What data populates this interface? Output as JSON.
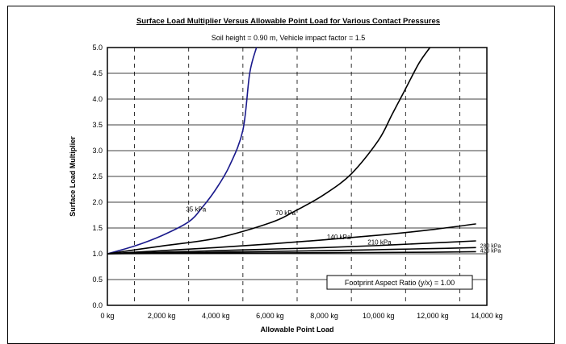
{
  "chart_data": {
    "type": "line",
    "title": "Surface Load Multiplier Versus Allowable Point Load for Various Contact Pressures",
    "subtitle": "Soil height = 0.90 m,  Vehicle impact factor = 1.5",
    "xlabel": "Allowable Point Load",
    "ylabel": "Surface Load Multiplier",
    "xlim": [
      0,
      14000
    ],
    "ylim": [
      0,
      5.0
    ],
    "x_ticks": [
      0,
      2000,
      4000,
      6000,
      8000,
      10000,
      12000,
      14000
    ],
    "x_tick_labels": [
      "0 kg",
      "2,000 kg",
      "4,000 kg",
      "6,000 kg",
      "8,000 kg",
      "10,000 kg",
      "12,000 kg",
      "14,000 kg"
    ],
    "y_ticks": [
      0.0,
      0.5,
      1.0,
      1.5,
      2.0,
      2.5,
      3.0,
      3.5,
      4.0,
      4.5,
      5.0
    ],
    "y_tick_labels": [
      "0.0",
      "0.5",
      "1.0",
      "1.5",
      "2.0",
      "2.5",
      "3.0",
      "3.5",
      "4.0",
      "4.5",
      "5.0"
    ],
    "grid": "horizontal solid, vertical dashed",
    "annotation": "Footprint Aspect Ratio (y/x) = 1.00",
    "series": [
      {
        "name": "35 kPa",
        "color": "#1a1a8c",
        "x": [
          0,
          1000,
          2000,
          3000,
          3500,
          4000,
          4500,
          5000,
          5250,
          5500
        ],
        "y": [
          1.0,
          1.15,
          1.35,
          1.62,
          1.9,
          2.25,
          2.7,
          3.4,
          4.5,
          5.0
        ]
      },
      {
        "name": "70 kPa",
        "color": "#000000",
        "x": [
          0,
          2000,
          4000,
          6000,
          7000,
          8000,
          9000,
          10000,
          10500,
          11000,
          11500,
          11900
        ],
        "y": [
          1.0,
          1.15,
          1.3,
          1.6,
          1.85,
          2.15,
          2.55,
          3.2,
          3.7,
          4.2,
          4.7,
          5.0
        ]
      },
      {
        "name": "140 kPa",
        "color": "#000000",
        "x": [
          0,
          2000,
          4000,
          6000,
          8000,
          10000,
          12000,
          13600
        ],
        "y": [
          1.0,
          1.06,
          1.12,
          1.19,
          1.27,
          1.36,
          1.47,
          1.58
        ]
      },
      {
        "name": "210 kPa",
        "color": "#000000",
        "x": [
          0,
          2000,
          4000,
          6000,
          8000,
          10000,
          12000,
          13600
        ],
        "y": [
          1.0,
          1.03,
          1.06,
          1.09,
          1.12,
          1.16,
          1.21,
          1.25
        ]
      },
      {
        "name": "280 kPa",
        "color": "#000000",
        "x": [
          0,
          4000,
          8000,
          10000,
          12000,
          13600
        ],
        "y": [
          1.0,
          1.03,
          1.06,
          1.08,
          1.1,
          1.12
        ]
      },
      {
        "name": "420 kPa",
        "color": "#000000",
        "x": [
          0,
          4000,
          8000,
          12000,
          13600
        ],
        "y": [
          1.0,
          1.01,
          1.02,
          1.03,
          1.04
        ]
      }
    ],
    "series_labels": [
      {
        "text": "35 kPa",
        "x": 2900,
        "y": 1.82
      },
      {
        "text": "70 kPa",
        "x": 6200,
        "y": 1.75
      },
      {
        "text": "140 kPa",
        "x": 8100,
        "y": 1.28
      },
      {
        "text": "210 kPa",
        "x": 9600,
        "y": 1.18
      },
      {
        "text": "280 kPa",
        "x": 13750,
        "y": 1.12
      },
      {
        "text": "420 kPa",
        "x": 13750,
        "y": 1.02
      }
    ]
  }
}
